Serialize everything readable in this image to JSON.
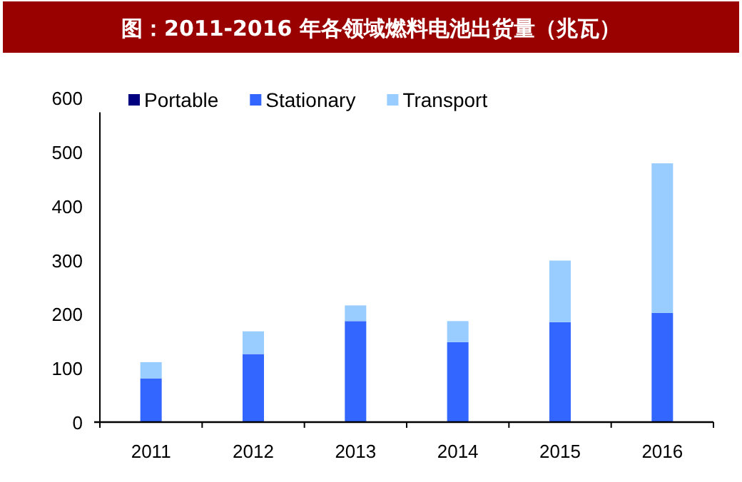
{
  "chart_data": {
    "type": "bar",
    "title": "图：2011-2016 年各领域燃料电池出货量（兆瓦）",
    "categories": [
      "2011",
      "2012",
      "2013",
      "2014",
      "2015",
      "2016"
    ],
    "stacked": true,
    "legend": "top",
    "ylim": [
      0,
      600
    ],
    "yticks": [
      0,
      100,
      200,
      300,
      400,
      500,
      600
    ],
    "series": [
      {
        "name": "Portable",
        "color": "#000080",
        "values": [
          0,
          0,
          0,
          0,
          0,
          0
        ]
      },
      {
        "name": "Stationary",
        "color": "#3366ff",
        "values": [
          81,
          126,
          187,
          148,
          185,
          202
        ]
      },
      {
        "name": "Transport",
        "color": "#99ccff",
        "values": [
          30,
          42,
          29,
          39,
          114,
          277
        ]
      }
    ]
  }
}
